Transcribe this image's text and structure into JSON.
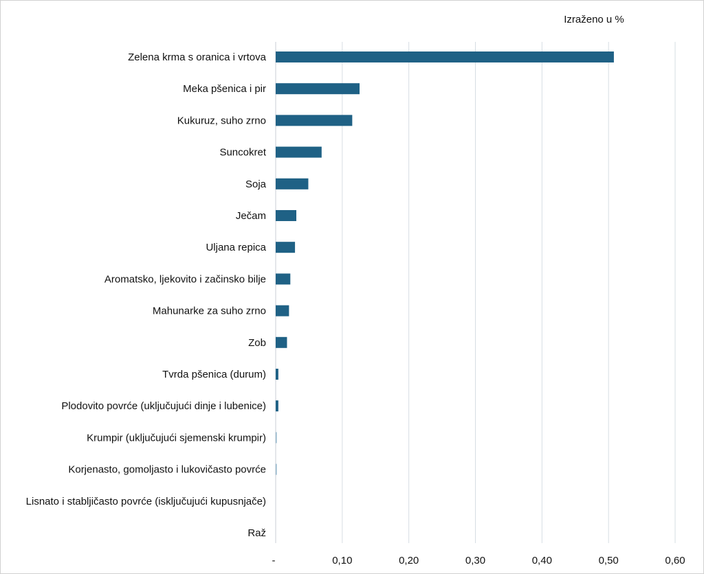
{
  "chart_data": {
    "type": "bar",
    "orientation": "horizontal",
    "unit_note": "Izraženo u %",
    "categories": [
      "Zelena krma s oranica i vrtova",
      "Meka pšenica i pir",
      "Kukuruz, suho zrno",
      "Suncokret",
      "Soja",
      "Ječam",
      "Uljana repica",
      "Aromatsko, ljekovito i začinsko bilje",
      "Mahunarke za suho zrno",
      "Zob",
      "Tvrda pšenica (durum)",
      "Plodovito povrće (uključujući dinje i lubenice)",
      "Krumpir (uključujući sjemenski krumpir)",
      "Korjenasto, gomoljasto i lukovičasto povrće",
      "Lisnato i stabljičasto povrće (isključujući kupusnjače)",
      "Raž"
    ],
    "values": [
      0.508,
      0.126,
      0.115,
      0.069,
      0.049,
      0.031,
      0.029,
      0.022,
      0.02,
      0.017,
      0.004,
      0.004,
      0.001,
      0.001,
      0.0,
      0.0
    ],
    "xlim": [
      0,
      0.6
    ],
    "x_ticks": [
      0,
      0.1,
      0.2,
      0.3,
      0.4,
      0.5,
      0.6
    ],
    "x_tick_labels": [
      "-",
      "0,10",
      "0,20",
      "0,30",
      "0,40",
      "0,50",
      "0,60"
    ],
    "grid": "vertical",
    "legend": "none",
    "bar_color": "#1f6185",
    "faint_bar_color": "#8fb3c9",
    "grid_color": "#d6dde3"
  }
}
